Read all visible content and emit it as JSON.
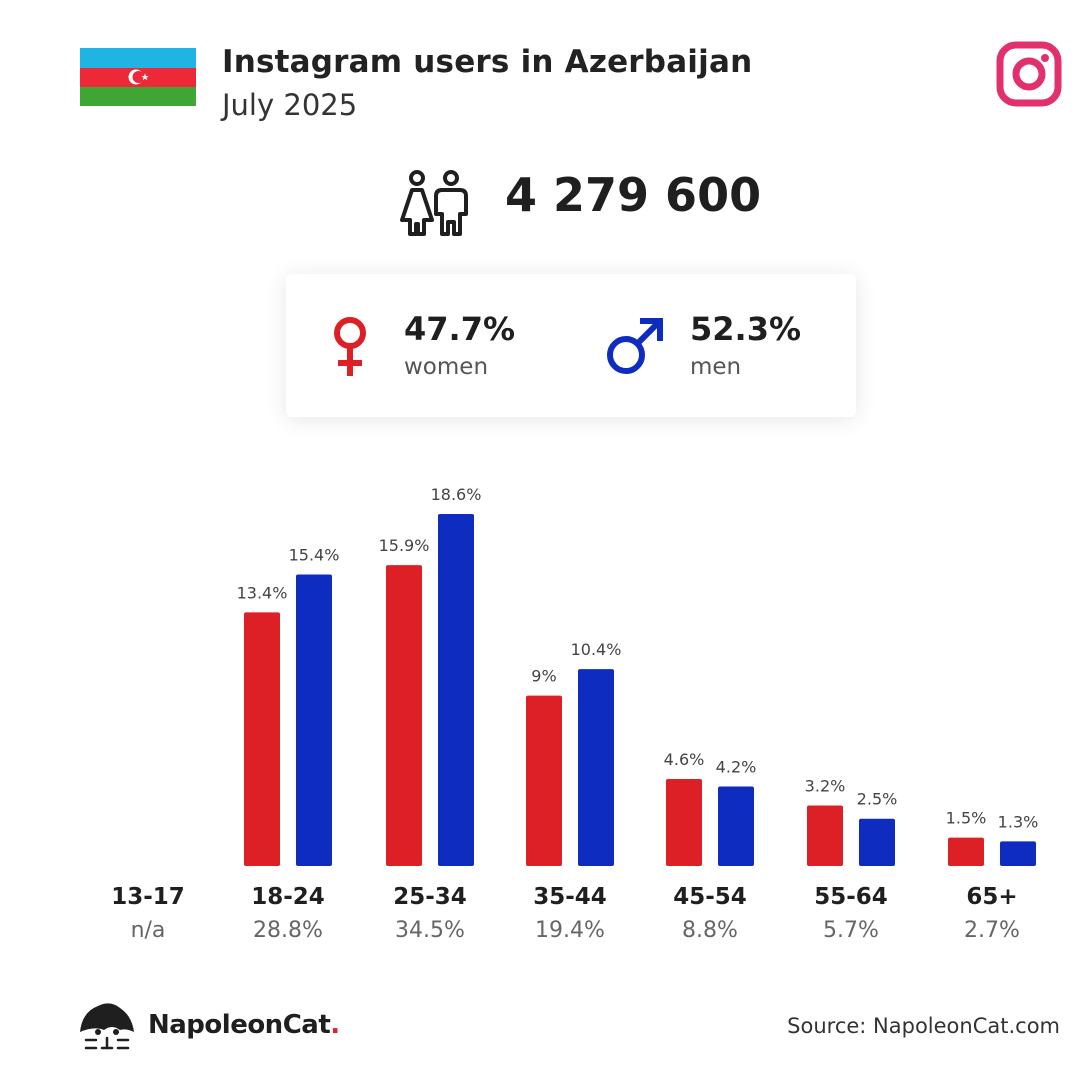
{
  "header": {
    "title": "Instagram users in Azerbaijan",
    "subtitle": "July 2025"
  },
  "total_users": "4 279 600",
  "gender": {
    "women_pct": "47.7%",
    "women_label": "women",
    "men_pct": "52.3%",
    "men_label": "men"
  },
  "colors": {
    "women": "#dd1f26",
    "men": "#0f2cc0",
    "instagram": "#e1306c",
    "flag_blue": "#1fb4e1",
    "flag_red": "#ed2939",
    "flag_green": "#3fa535"
  },
  "icons": {
    "flag": "azerbaijan-flag-icon",
    "logo": "instagram-logo-icon",
    "users": "users-icon",
    "female": "female-symbol-icon",
    "male": "male-symbol-icon",
    "brand": "napoleoncat-logo-icon"
  },
  "chart_data": {
    "type": "bar",
    "categories": [
      "13-17",
      "18-24",
      "25-34",
      "35-44",
      "45-54",
      "55-64",
      "65+"
    ],
    "category_totals": [
      "n/a",
      "28.8%",
      "34.5%",
      "19.4%",
      "8.8%",
      "5.7%",
      "2.7%"
    ],
    "series": [
      {
        "name": "women",
        "values": [
          null,
          13.4,
          15.9,
          9,
          4.6,
          3.2,
          1.5
        ],
        "labels": [
          "",
          "13.4%",
          "15.9%",
          "9%",
          "4.6%",
          "3.2%",
          "1.5%"
        ]
      },
      {
        "name": "men",
        "values": [
          null,
          15.4,
          18.6,
          10.4,
          4.2,
          2.5,
          1.3
        ],
        "labels": [
          "",
          "15.4%",
          "18.6%",
          "10.4%",
          "4.2%",
          "2.5%",
          "1.3%"
        ]
      }
    ],
    "ylim": [
      0,
      18.6
    ],
    "grid": false,
    "legend": "none"
  },
  "footer": {
    "brand": "NapoleonCat",
    "brand_dot": ".",
    "source": "Source: NapoleonCat.com"
  }
}
